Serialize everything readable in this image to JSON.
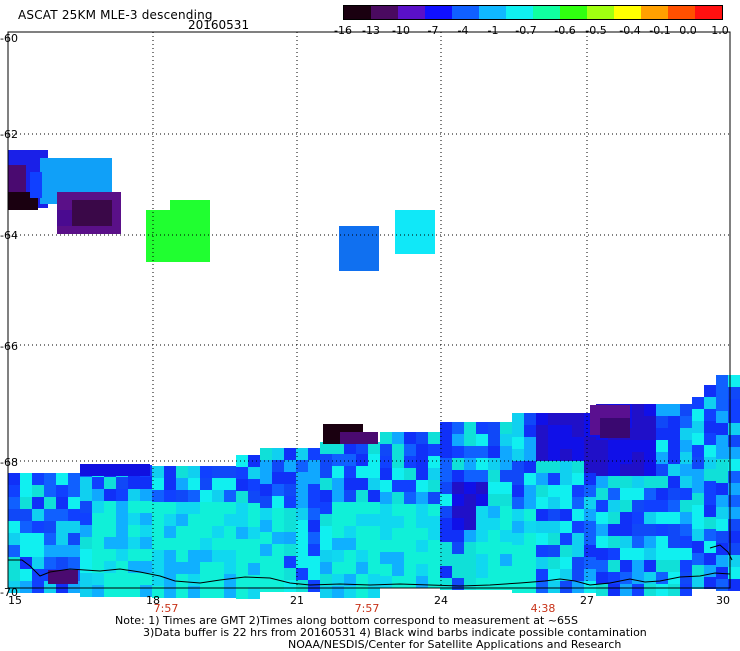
{
  "title": "ASCAT 25KM MLE-3 descending",
  "date": "20160531",
  "colorbar": {
    "labels": [
      "-16",
      "-13",
      "-10",
      "-7",
      "-4",
      "-1",
      "-0.7",
      "-0.6",
      "-0.5",
      "-0.4",
      "-0.1",
      "0.0",
      "1.0"
    ],
    "colors": [
      "#1a0010",
      "#4a0a60",
      "#5a10c8",
      "#1010ff",
      "#1060ff",
      "#10b8ff",
      "#10f0f0",
      "#10ffa0",
      "#30ff10",
      "#a0ff10",
      "#ffff00",
      "#ffa000",
      "#ff5000",
      "#ff1010"
    ]
  },
  "lat_labels": [
    "-60",
    "-62",
    "-64",
    "-66",
    "-68",
    "-70"
  ],
  "lon_labels": [
    "15",
    "18",
    "21",
    "24",
    "27",
    "30"
  ],
  "time_labels": [
    "7:57",
    "7:57",
    "4:38"
  ],
  "notes": [
    "Note: 1) Times are GMT 2)Times along bottom correspond to measurement at ~65S",
    "3)Data buffer is 22 hrs from 20160531 4) Black wind barbs indicate possible contamination",
    "NOAA/NESDIS/Center for Satellite Applications and Research"
  ]
}
